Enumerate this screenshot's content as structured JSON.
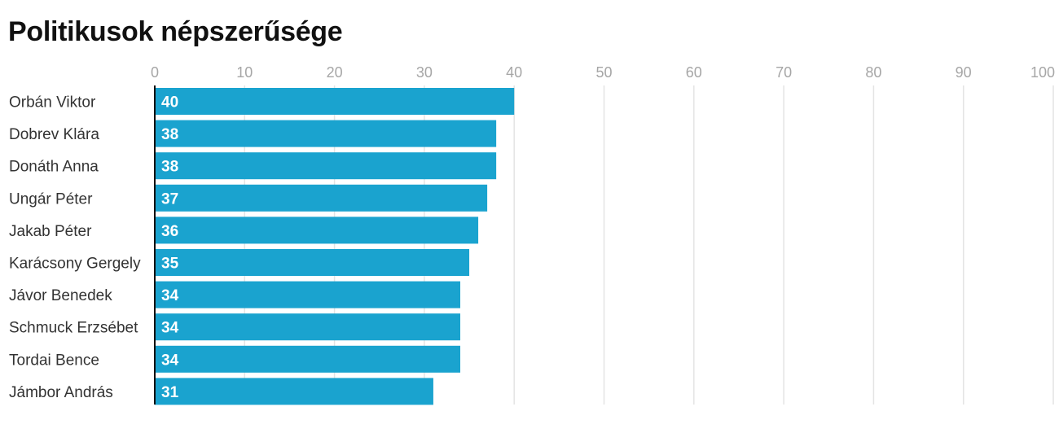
{
  "chart_data": {
    "type": "bar",
    "orientation": "horizontal",
    "title": "Politikusok népszerűsége",
    "categories": [
      "Orbán Viktor",
      "Dobrev Klára",
      "Donáth Anna",
      "Ungár Péter",
      "Jakab Péter",
      "Karácsony Gergely",
      "Jávor Benedek",
      "Schmuck Erzsébet",
      "Tordai Bence",
      "Jámbor András"
    ],
    "values": [
      40,
      38,
      38,
      37,
      36,
      35,
      34,
      34,
      34,
      31
    ],
    "data_labels": [
      "40",
      "38",
      "38",
      "37",
      "36",
      "35",
      "34",
      "34",
      "34",
      "31"
    ],
    "xlim": [
      0,
      100
    ],
    "ticks": [
      0,
      10,
      20,
      30,
      40,
      50,
      60,
      70,
      80,
      90,
      100
    ],
    "tick_labels": [
      "0",
      "10",
      "20",
      "30",
      "40",
      "50",
      "60",
      "70",
      "80",
      "90",
      "100"
    ],
    "axis_position": "top",
    "grid": true,
    "colors": {
      "bar": "#1aa3cf",
      "grid": "#e4e4e4",
      "axis": "#111111",
      "tick_label": "#a6a6a6",
      "category_label": "#333333",
      "data_label": "#ffffff"
    }
  }
}
